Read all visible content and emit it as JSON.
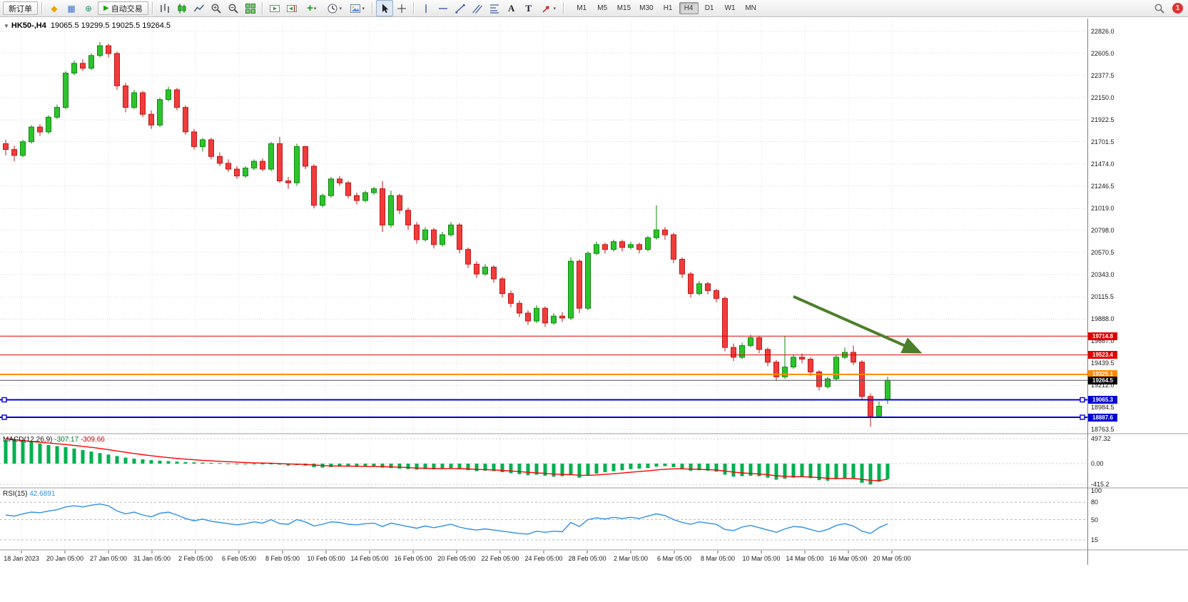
{
  "toolbar": {
    "new_order_label": "新订单",
    "auto_trading_label": "自动交易",
    "add_indicator_label": "+",
    "text_tool_label": "A",
    "label_tool_label": "T",
    "timeframes": [
      "M1",
      "M5",
      "M15",
      "M30",
      "H1",
      "H4",
      "D1",
      "W1",
      "MN"
    ],
    "active_timeframe": "H4",
    "notification_count": "1"
  },
  "chart": {
    "symbol_period": "HK50-,H4",
    "ohlc_line": "19065.5 19299.5 19025.5 19264.5"
  },
  "chart_data": {
    "type": "candlestick",
    "symbol": "HK50-",
    "timeframe": "H4",
    "title_ohlc": {
      "open": 19065.5,
      "high": 19299.5,
      "low": 19025.5,
      "close": 19264.5
    },
    "price_axis_ticks": [
      "22826.0",
      "22605.0",
      "22377.5",
      "22150.0",
      "21922.5",
      "21701.5",
      "21474.0",
      "21246.5",
      "21019.0",
      "20798.0",
      "20570.5",
      "20343.0",
      "20115.5",
      "19888.0",
      "19667.0",
      "19439.5",
      "19212.0",
      "18984.5",
      "18763.5"
    ],
    "time_axis_ticks": [
      "18 Jan 2023",
      "20 Jan 05:00",
      "27 Jan 05:00",
      "31 Jan 05:00",
      "2 Feb 05:00",
      "6 Feb 05:00",
      "8 Feb 05:00",
      "10 Feb 05:00",
      "14 Feb 05:00",
      "16 Feb 05:00",
      "20 Feb 05:00",
      "22 Feb 05:00",
      "24 Feb 05:00",
      "28 Feb 05:00",
      "2 Mar 05:00",
      "6 Mar 05:00",
      "8 Mar 05:00",
      "10 Mar 05:00",
      "14 Mar 05:00",
      "16 Mar 05:00",
      "20 Mar 05:00"
    ],
    "colors": {
      "up": "#2dc32d",
      "up_border": "#0e8a0e",
      "down": "#f13c3c",
      "down_border": "#c01818",
      "grid": "#d9d9d9"
    },
    "candles": [
      [
        21680,
        21720,
        21560,
        21620
      ],
      [
        21620,
        21660,
        21500,
        21560
      ],
      [
        21560,
        21720,
        21540,
        21700
      ],
      [
        21700,
        21870,
        21680,
        21850
      ],
      [
        21850,
        21880,
        21760,
        21800
      ],
      [
        21800,
        21970,
        21780,
        21950
      ],
      [
        21950,
        22080,
        21930,
        22050
      ],
      [
        22050,
        22420,
        22030,
        22400
      ],
      [
        22400,
        22530,
        22380,
        22500
      ],
      [
        22500,
        22540,
        22420,
        22450
      ],
      [
        22450,
        22600,
        22430,
        22580
      ],
      [
        22580,
        22720,
        22560,
        22680
      ],
      [
        22680,
        22700,
        22560,
        22600
      ],
      [
        22600,
        22620,
        22230,
        22270
      ],
      [
        22270,
        22300,
        22000,
        22050
      ],
      [
        22050,
        22230,
        22030,
        22200
      ],
      [
        22200,
        22220,
        21950,
        21980
      ],
      [
        21980,
        22020,
        21830,
        21870
      ],
      [
        21870,
        22150,
        21850,
        22130
      ],
      [
        22130,
        22260,
        22110,
        22230
      ],
      [
        22230,
        22250,
        22020,
        22050
      ],
      [
        22050,
        22070,
        21770,
        21800
      ],
      [
        21800,
        21830,
        21620,
        21650
      ],
      [
        21650,
        21740,
        21600,
        21720
      ],
      [
        21720,
        21740,
        21520,
        21550
      ],
      [
        21550,
        21590,
        21450,
        21480
      ],
      [
        21480,
        21520,
        21390,
        21420
      ],
      [
        21420,
        21450,
        21320,
        21350
      ],
      [
        21350,
        21450,
        21330,
        21430
      ],
      [
        21430,
        21520,
        21410,
        21500
      ],
      [
        21500,
        21530,
        21400,
        21420
      ],
      [
        21420,
        21700,
        21400,
        21680
      ],
      [
        21680,
        21750,
        21280,
        21300
      ],
      [
        21300,
        21340,
        21220,
        21280
      ],
      [
        21280,
        21680,
        21250,
        21650
      ],
      [
        21650,
        21660,
        21420,
        21450
      ],
      [
        21450,
        21470,
        21020,
        21050
      ],
      [
        21050,
        21170,
        21030,
        21150
      ],
      [
        21150,
        21340,
        21130,
        21320
      ],
      [
        21320,
        21350,
        21250,
        21280
      ],
      [
        21280,
        21300,
        21120,
        21150
      ],
      [
        21150,
        21180,
        21060,
        21100
      ],
      [
        21100,
        21200,
        21080,
        21180
      ],
      [
        21180,
        21240,
        21160,
        21220
      ],
      [
        21220,
        21300,
        20780,
        20850
      ],
      [
        20850,
        21200,
        20820,
        21150
      ],
      [
        21150,
        21170,
        20960,
        21000
      ],
      [
        21000,
        21030,
        20800,
        20850
      ],
      [
        20850,
        20880,
        20660,
        20700
      ],
      [
        20700,
        20830,
        20680,
        20800
      ],
      [
        20800,
        20820,
        20610,
        20650
      ],
      [
        20650,
        20780,
        20630,
        20750
      ],
      [
        20750,
        20880,
        20730,
        20850
      ],
      [
        20850,
        20870,
        20560,
        20600
      ],
      [
        20600,
        20620,
        20410,
        20450
      ],
      [
        20450,
        20480,
        20310,
        20350
      ],
      [
        20350,
        20450,
        20330,
        20420
      ],
      [
        20420,
        20440,
        20260,
        20300
      ],
      [
        20300,
        20320,
        20110,
        20150
      ],
      [
        20150,
        20180,
        20010,
        20050
      ],
      [
        20050,
        20080,
        19910,
        19950
      ],
      [
        19950,
        19980,
        19830,
        19870
      ],
      [
        19870,
        20030,
        19850,
        20000
      ],
      [
        20000,
        20020,
        19810,
        19850
      ],
      [
        19850,
        19950,
        19830,
        19920
      ],
      [
        19920,
        19960,
        19860,
        19900
      ],
      [
        19900,
        20520,
        19880,
        20480
      ],
      [
        20480,
        20500,
        19950,
        20000
      ],
      [
        20000,
        20580,
        19980,
        20560
      ],
      [
        20560,
        20680,
        20540,
        20650
      ],
      [
        20650,
        20670,
        20560,
        20600
      ],
      [
        20600,
        20700,
        20580,
        20680
      ],
      [
        20680,
        20700,
        20580,
        20620
      ],
      [
        20620,
        20680,
        20600,
        20650
      ],
      [
        20650,
        20670,
        20560,
        20600
      ],
      [
        20600,
        20740,
        20580,
        20720
      ],
      [
        20720,
        21050,
        20700,
        20800
      ],
      [
        20800,
        20830,
        20700,
        20750
      ],
      [
        20750,
        20770,
        20460,
        20500
      ],
      [
        20500,
        20520,
        20310,
        20350
      ],
      [
        20350,
        20370,
        20110,
        20150
      ],
      [
        20150,
        20280,
        20130,
        20250
      ],
      [
        20250,
        20270,
        20140,
        20180
      ],
      [
        20180,
        20200,
        20060,
        20100
      ],
      [
        20100,
        20120,
        19560,
        19600
      ],
      [
        19600,
        19640,
        19460,
        19500
      ],
      [
        19500,
        19650,
        19480,
        19620
      ],
      [
        19620,
        19730,
        19600,
        19700
      ],
      [
        19700,
        19720,
        19540,
        19580
      ],
      [
        19580,
        19600,
        19410,
        19450
      ],
      [
        19450,
        19470,
        19260,
        19300
      ],
      [
        19300,
        19714,
        19280,
        19400
      ],
      [
        19400,
        19530,
        19380,
        19500
      ],
      [
        19500,
        19540,
        19440,
        19480
      ],
      [
        19480,
        19500,
        19310,
        19350
      ],
      [
        19350,
        19370,
        19160,
        19200
      ],
      [
        19200,
        19300,
        19180,
        19280
      ],
      [
        19280,
        19520,
        19260,
        19500
      ],
      [
        19500,
        19600,
        19480,
        19550
      ],
      [
        19550,
        19620,
        19420,
        19450
      ],
      [
        19450,
        19470,
        19060,
        19100
      ],
      [
        19100,
        19130,
        18790,
        18900
      ],
      [
        18900,
        19050,
        18880,
        19000
      ],
      [
        19065.5,
        19299.5,
        19025.5,
        19264.5
      ]
    ],
    "horizontal_lines": [
      {
        "price": 19714.8,
        "label": "19714.8",
        "color": "#e10000",
        "width": 1
      },
      {
        "price": 19523.4,
        "label": "19523.4",
        "color": "#e10000",
        "width": 1
      },
      {
        "price": 19325.1,
        "label": "19325.1",
        "color": "#ff8a00",
        "width": 2
      },
      {
        "price": 19264.5,
        "label": "19264.5",
        "color": "#555555",
        "badge": "#000000",
        "width": 1,
        "current": true
      },
      {
        "price": 19065.3,
        "label": "19065.3",
        "color": "#0000d8",
        "width": 2,
        "handles": true
      },
      {
        "price": 18887.6,
        "label": "18887.6",
        "color": "#0000d8",
        "width": 2,
        "handles": true
      }
    ],
    "trend_arrow": {
      "from_candle": 92,
      "from_price": 20120,
      "to_candle": 106.5,
      "to_price": 19560,
      "color": "#4c7f2b"
    },
    "macd": {
      "label": "MACD(12,26,9)",
      "value": "-307.17",
      "signal": "-309.66",
      "scale_ticks": [
        "497.32",
        "0.00",
        "-415.2"
      ],
      "scale_values": [
        497.32,
        0,
        -415.2
      ],
      "histogram_color": "#00b050",
      "signal_color": "#ff0000",
      "histogram": [
        460,
        490,
        470,
        440,
        400,
        370,
        350,
        330,
        300,
        270,
        240,
        210,
        180,
        150,
        120,
        100,
        85,
        70,
        60,
        50,
        40,
        30,
        25,
        20,
        15,
        10,
        5,
        0,
        -5,
        -10,
        -10,
        -5,
        -20,
        -40,
        -30,
        -40,
        -70,
        -80,
        -70,
        -60,
        -60,
        -65,
        -60,
        -55,
        -80,
        -90,
        -100,
        -110,
        -120,
        -110,
        -115,
        -105,
        -95,
        -110,
        -130,
        -150,
        -140,
        -150,
        -170,
        -190,
        -210,
        -230,
        -220,
        -240,
        -260,
        -250,
        -230,
        -280,
        -240,
        -200,
        -170,
        -150,
        -130,
        -110,
        -100,
        -90,
        -60,
        -50,
        -70,
        -100,
        -140,
        -130,
        -140,
        -160,
        -220,
        -260,
        -250,
        -240,
        -250,
        -280,
        -320,
        -300,
        -280,
        -270,
        -290,
        -330,
        -340,
        -310,
        -290,
        -300,
        -380,
        -415,
        -360,
        -307.17
      ],
      "signal_line": [
        497,
        480,
        460,
        440,
        425,
        410,
        395,
        380,
        362,
        344,
        324,
        302,
        278,
        252,
        226,
        201,
        178,
        157,
        138,
        120,
        104,
        89,
        76,
        65,
        55,
        46,
        38,
        30,
        23,
        16,
        11,
        8,
        2,
        -6,
        -11,
        -17,
        -28,
        -38,
        -45,
        -48,
        -50,
        -53,
        -55,
        -55,
        -60,
        -66,
        -73,
        -80,
        -88,
        -93,
        -97,
        -99,
        -98,
        -100,
        -106,
        -115,
        -120,
        -126,
        -135,
        -146,
        -159,
        -173,
        -183,
        -194,
        -207,
        -216,
        -219,
        -231,
        -233,
        -226,
        -215,
        -202,
        -188,
        -172,
        -158,
        -144,
        -127,
        -112,
        -104,
        -103,
        -110,
        -114,
        -119,
        -127,
        -146,
        -169,
        -185,
        -196,
        -207,
        -222,
        -241,
        -253,
        -258,
        -261,
        -267,
        -279,
        -291,
        -295,
        -294,
        -295,
        -312,
        -333,
        -338,
        -309.66
      ]
    },
    "rsi": {
      "label": "RSI(15)",
      "value": "42.6891",
      "scale_ticks": [
        "100",
        "80",
        "50",
        "15"
      ],
      "levels": [
        80,
        50,
        15
      ],
      "line_color": "#2e8fe8",
      "values": [
        58,
        56,
        60,
        63,
        62,
        65,
        67,
        72,
        74,
        72,
        75,
        77,
        74,
        65,
        60,
        63,
        58,
        55,
        61,
        63,
        58,
        52,
        48,
        51,
        47,
        45,
        43,
        41,
        43,
        46,
        44,
        50,
        43,
        42,
        50,
        46,
        39,
        42,
        46,
        45,
        42,
        41,
        43,
        44,
        38,
        44,
        41,
        38,
        35,
        39,
        36,
        39,
        42,
        37,
        34,
        32,
        34,
        32,
        30,
        28,
        26,
        25,
        30,
        28,
        30,
        29,
        45,
        38,
        50,
        53,
        51,
        54,
        52,
        54,
        52,
        56,
        60,
        57,
        50,
        45,
        42,
        46,
        44,
        42,
        33,
        31,
        37,
        40,
        36,
        32,
        28,
        34,
        38,
        37,
        33,
        29,
        33,
        40,
        43,
        39,
        30,
        26,
        36,
        42.6891
      ]
    }
  }
}
